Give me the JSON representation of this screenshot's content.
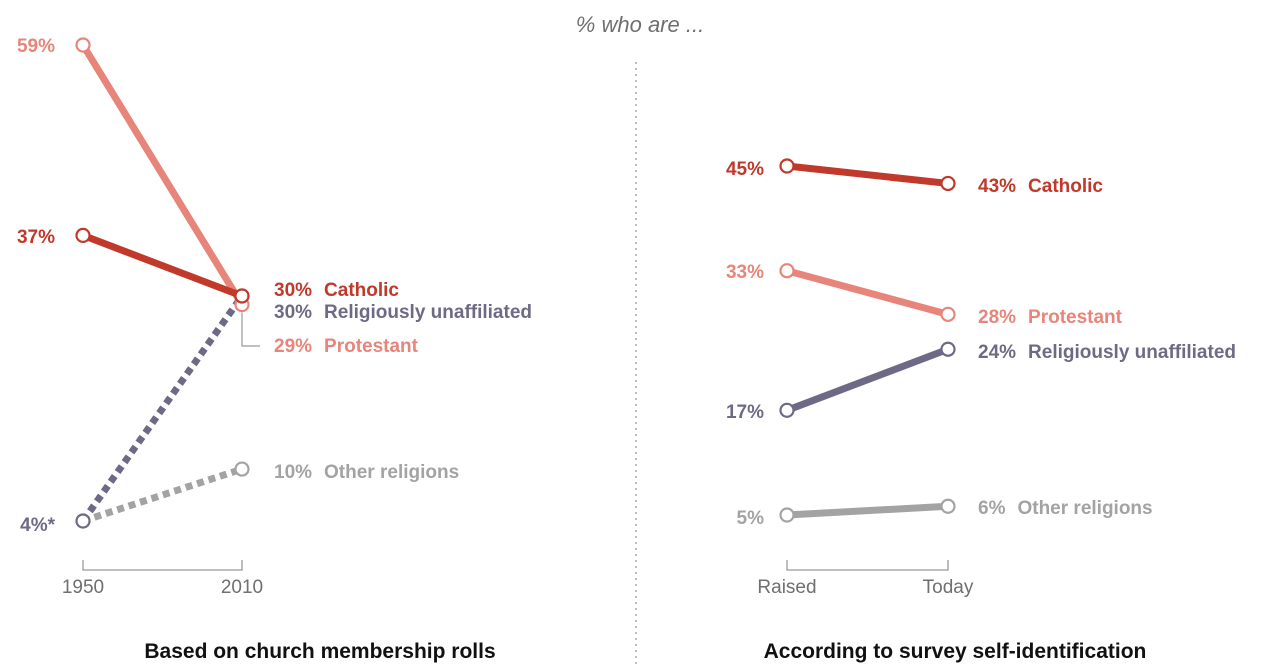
{
  "subtitle": "% who are ...",
  "colors": {
    "Catholic": "#c0392b",
    "Protestant": "#e8857a",
    "Religiously unaffiliated": "#6e6a85",
    "Other religions": "#a3a3a3"
  },
  "chart_data": [
    {
      "type": "line",
      "title": "Based on church membership rolls",
      "categories": [
        "1950",
        "2010"
      ],
      "ylim": [
        0,
        60
      ],
      "grid": false,
      "series": [
        {
          "name": "Protestant",
          "values": [
            59,
            29
          ],
          "start_label": "59%",
          "end_label": "29%"
        },
        {
          "name": "Catholic",
          "values": [
            37,
            30
          ],
          "start_label": "37%",
          "end_label": "30%"
        },
        {
          "name": "Religiously unaffiliated",
          "values": [
            4,
            30
          ],
          "dashed": true,
          "start_label": "4%*",
          "end_label": "30%"
        },
        {
          "name": "Other religions",
          "values": [
            4,
            10
          ],
          "dashed": true,
          "start_label": "",
          "end_label": "10%"
        }
      ]
    },
    {
      "type": "line",
      "title": "According to survey self-identification",
      "categories": [
        "Raised",
        "Today"
      ],
      "ylim": [
        0,
        60
      ],
      "grid": false,
      "series": [
        {
          "name": "Catholic",
          "values": [
            45,
            43
          ],
          "start_label": "45%",
          "end_label": "43%"
        },
        {
          "name": "Protestant",
          "values": [
            33,
            28
          ],
          "start_label": "33%",
          "end_label": "28%"
        },
        {
          "name": "Religiously unaffiliated",
          "values": [
            17,
            24
          ],
          "start_label": "17%",
          "end_label": "24%"
        },
        {
          "name": "Other religions",
          "values": [
            5,
            6
          ],
          "start_label": "5%",
          "end_label": "6%"
        }
      ]
    }
  ]
}
